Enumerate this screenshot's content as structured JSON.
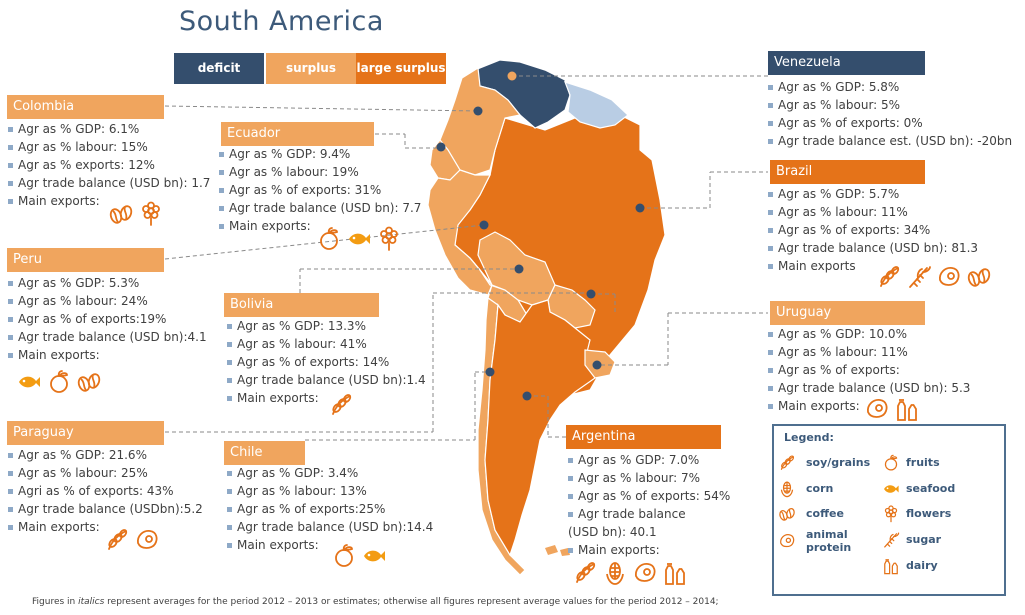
{
  "title": "South America",
  "key": {
    "deficit": "deficit",
    "surplus": "surplus",
    "large_surplus": "large surplus"
  },
  "colors": {
    "deficit": "#344e6d",
    "surplus": "#f0a55e",
    "large_surplus": "#e57319",
    "no_data": "#b9cde4"
  },
  "countries": {
    "venezuela": {
      "name": "Venezuela",
      "rows": [
        "Agr as % GDP: 5.8%",
        "Agr as % labour: 5%",
        "Agr as % of exports: 0%",
        "Agr trade balance est. (USD bn): -20bn"
      ]
    },
    "colombia": {
      "name": "Colombia",
      "rows": [
        "Agr as % GDP: 6.1%",
        "Agr as % labour: 15%",
        "Agr as % exports: 12%",
        "Agr trade balance (USD bn): 1.7",
        "Main exports:"
      ],
      "exports": [
        "coffee",
        "flowers"
      ]
    },
    "ecuador": {
      "name": "Ecuador",
      "rows": [
        "Agr as % GDP: 9.4%",
        "Agr as % labour: 19%",
        "Agr as % of exports: 31%",
        "Agr trade balance (USD bn): 7.7",
        "Main exports:"
      ],
      "exports": [
        "fruits",
        "seafood",
        "flowers"
      ]
    },
    "brazil": {
      "name": "Brazil",
      "rows": [
        "Agr as % GDP: 5.7%",
        "Agr as % labour: 11%",
        "Agr as % of exports: 34%",
        "Agr trade balance (USD bn): 81.3",
        "Main exports"
      ],
      "exports": [
        "soy/grains",
        "sugar",
        "animal protein",
        "coffee"
      ]
    },
    "peru": {
      "name": "Peru",
      "rows": [
        "Agr as % GDP: 5.3%",
        "Agr as % labour: 24%",
        "Agr as % of exports:19%",
        "Agr trade balance (USD bn):4.1",
        "Main exports:"
      ],
      "exports": [
        "seafood",
        "fruits",
        "coffee"
      ]
    },
    "bolivia": {
      "name": "Bolivia",
      "rows": [
        "Agr as % GDP: 13.3%",
        "Agr as % labour: 41%",
        "Agr as % of exports: 14%",
        "Agr trade balance (USD bn):1.4",
        "Main exports:"
      ],
      "exports": [
        "soy/grains"
      ]
    },
    "uruguay": {
      "name": "Uruguay",
      "rows": [
        "Agr as % GDP: 10.0%",
        "Agr as % labour: 11%",
        "Agr as % of exports:",
        "Agr trade balance (USD bn): 5.3",
        "Main exports:"
      ],
      "exports": [
        "animal protein",
        "dairy"
      ]
    },
    "paraguay": {
      "name": "Paraguay",
      "rows": [
        "Agr as % GDP: 21.6%",
        "Agr as % labour: 25%",
        "Agri as % of exports: 43%",
        "Agr trade balance (USDbn):5.2",
        "Main exports:"
      ],
      "exports": [
        "soy/grains",
        "animal protein"
      ]
    },
    "chile": {
      "name": "Chile",
      "rows": [
        "Agr as % GDP: 3.4%",
        "Agr as % labour: 13%",
        "Agr as % of exports:25%",
        "Agr trade balance (USD bn):14.4",
        "Main exports:"
      ],
      "exports": [
        "fruits",
        "seafood"
      ]
    },
    "argentina": {
      "name": "Argentina",
      "rows": [
        "Agr as % GDP: 7.0%",
        "Agr as % labour: 7%",
        "Agr as % of exports: 54%",
        "Agr trade balance",
        "(USD bn): 40.1",
        "Main exports:"
      ],
      "exports": [
        "soy/grains",
        "corn",
        "animal protein",
        "dairy"
      ]
    }
  },
  "legend": {
    "title": "Legend:",
    "soy": "soy/grains",
    "fruits": "fruits",
    "corn": "corn",
    "seafood": "seafood",
    "coffee": "coffee",
    "flowers": "flowers",
    "animal1": "animal",
    "animal2": "protein",
    "sugar": "sugar",
    "dairy": "dairy"
  },
  "footnote": {
    "pre": "Figures in ",
    "italic": "italics",
    "post": " represent averages for the period 2012 – 2013 or estimates; otherwise all figures represent average values for the period 2012 – 2014;"
  }
}
